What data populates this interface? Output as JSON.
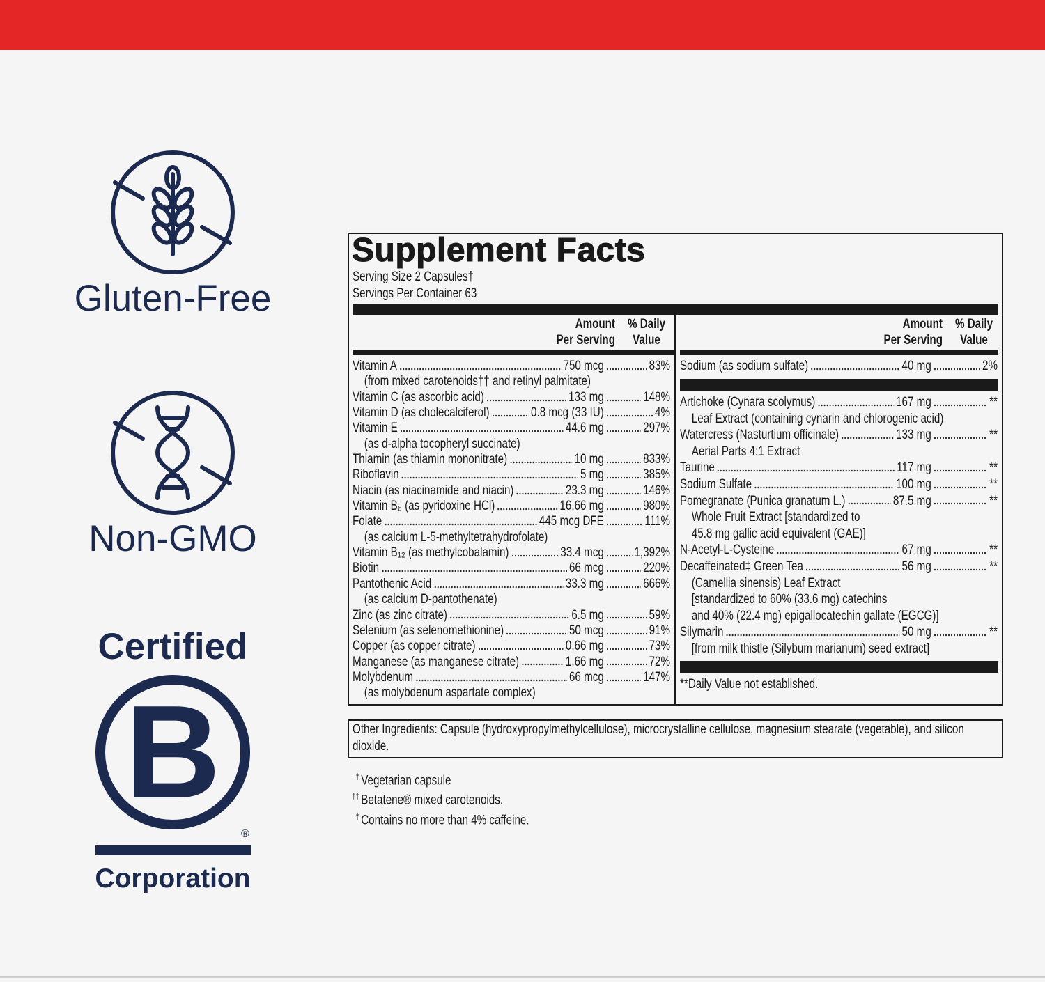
{
  "badges": {
    "gluten_free": "Gluten-Free",
    "non_gmo": "Non-GMO",
    "bcorp": {
      "top": "Certified",
      "letter": "B",
      "reg": "®",
      "bottom": "Corporation"
    }
  },
  "facts": {
    "title": "Supplement Facts",
    "serving_size": "Serving Size 2 Capsules†",
    "servings_per_container": "Servings Per Container 63",
    "amount_header": [
      "Amount",
      "Per Serving"
    ],
    "dv_header": [
      "% Daily",
      "Value"
    ],
    "left_rows": [
      {
        "name": "Vitamin A",
        "amount": "750 mcg",
        "dv": "83%",
        "sub": [
          "(from mixed carotenoids†† and retinyl palmitate)"
        ]
      },
      {
        "name": "Vitamin C (as ascorbic acid)",
        "amount": "133 mg",
        "dv": "148%"
      },
      {
        "name": "Vitamin D (as cholecalciferol)",
        "amount": "0.8 mcg (33 IU)",
        "dv": "4%"
      },
      {
        "name": "Vitamin E",
        "amount": "44.6 mg",
        "dv": "297%",
        "sub": [
          "(as d-alpha tocopheryl succinate)"
        ]
      },
      {
        "name": "Thiamin (as thiamin mononitrate)",
        "amount": "10 mg",
        "dv": "833%"
      },
      {
        "name": "Riboflavin",
        "amount": "5 mg",
        "dv": "385%"
      },
      {
        "name": "Niacin (as niacinamide and niacin)",
        "amount": "23.3 mg",
        "dv": "146%"
      },
      {
        "name": "Vitamin B₆ (as pyridoxine HCl)",
        "amount": "16.66 mg",
        "dv": "980%"
      },
      {
        "name": "Folate",
        "amount": "445 mcg DFE",
        "dv": "111%",
        "sub": [
          "(as calcium L-5-methyltetrahydrofolate)"
        ]
      },
      {
        "name": "Vitamin B₁₂ (as methylcobalamin)",
        "amount": "33.4 mcg",
        "dv": "1,392%"
      },
      {
        "name": "Biotin",
        "amount": "66 mcg",
        "dv": "220%"
      },
      {
        "name": "Pantothenic Acid",
        "amount": "33.3 mg",
        "dv": "666%",
        "sub": [
          "(as calcium D-pantothenate)"
        ]
      },
      {
        "name": "Zinc (as zinc citrate)",
        "amount": "6.5 mg",
        "dv": "59%"
      },
      {
        "name": "Selenium (as selenomethionine)",
        "amount": "50 mcg",
        "dv": "91%"
      },
      {
        "name": "Copper (as copper citrate)",
        "amount": "0.66 mg",
        "dv": "73%"
      },
      {
        "name": "Manganese (as manganese citrate)",
        "amount": "1.66 mg",
        "dv": "72%"
      },
      {
        "name": "Molybdenum",
        "amount": "66 mcg",
        "dv": "147%",
        "sub": [
          "(as molybdenum aspartate complex)"
        ]
      }
    ],
    "right_top_rows": [
      {
        "name": "Sodium (as sodium sulfate)",
        "amount": "40 mg",
        "dv": "2%"
      }
    ],
    "right_rows": [
      {
        "name": "Artichoke (Cynara scolymus)",
        "amount": "167 mg",
        "dv": "**",
        "sub": [
          "Leaf Extract (containing cynarin and chlorogenic acid)"
        ]
      },
      {
        "name": "Watercress (Nasturtium officinale)",
        "amount": "133 mg",
        "dv": "**",
        "sub": [
          "Aerial Parts 4:1 Extract"
        ]
      },
      {
        "name": "Taurine",
        "amount": "117 mg",
        "dv": "**"
      },
      {
        "name": "Sodium Sulfate",
        "amount": "100 mg",
        "dv": "**"
      },
      {
        "name": "Pomegranate (Punica granatum L.)",
        "amount": "87.5 mg",
        "dv": "**",
        "sub": [
          "Whole Fruit Extract [standardized to",
          "45.8 mg gallic acid equivalent (GAE)]"
        ]
      },
      {
        "name": "N-Acetyl-L-Cysteine",
        "amount": "67 mg",
        "dv": "**"
      },
      {
        "name": "Decaffeinated‡ Green Tea",
        "amount": "56 mg",
        "dv": "**",
        "sub": [
          "(Camellia sinensis) Leaf Extract",
          "[standardized to 60% (33.6 mg) catechins",
          "and 40% (22.4 mg) epigallocatechin gallate (EGCG)]"
        ]
      },
      {
        "name": "Silymarin",
        "amount": "50 mg",
        "dv": "**",
        "sub": [
          "[from milk thistle (Silybum marianum) seed extract]"
        ]
      }
    ],
    "note": "**Daily Value not established."
  },
  "other_ingredients": "Other Ingredients: Capsule (hydroxypropylmethylcellulose), microcrystalline cellulose, magnesium stearate (vegetable), and silicon dioxide.",
  "footnotes": [
    {
      "mark": "†",
      "text": "Vegetarian capsule"
    },
    {
      "mark": "††",
      "text": "Betatene® mixed carotenoids."
    },
    {
      "mark": "‡",
      "text": "Contains no more than 4% caffeine."
    }
  ]
}
